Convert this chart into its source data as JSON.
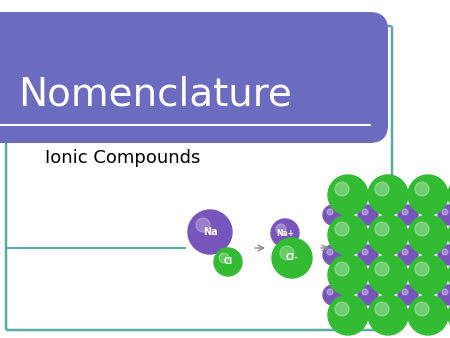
{
  "title": "Nomenclature",
  "subtitle": "Ionic Compounds",
  "bg_color": "#f0f0f0",
  "header_bg": "#6b6bbf",
  "header_text_color": "#ffffff",
  "subtitle_text_color": "#000000",
  "border_color": "#5aaaaa",
  "na_color": "#7755bb",
  "cl_color": "#33bb33",
  "na_label": "Na",
  "cl_label": "Cl",
  "arrow_color": "#888888",
  "line_color": "#5aaaaa"
}
